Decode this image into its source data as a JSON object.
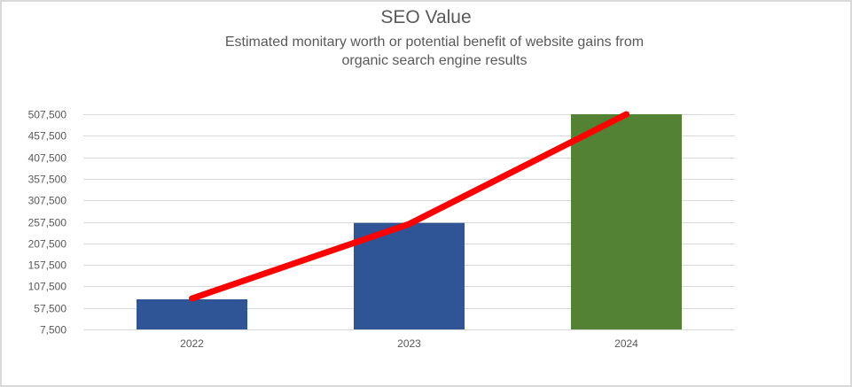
{
  "chart": {
    "title": "SEO Value",
    "subtitle": "Estimated monitary  worth  or potential  benefit of website gains from organic search engine results"
  },
  "chart_data": {
    "type": "bar",
    "title": "SEO Value",
    "subtitle": "Estimated monitary  worth  or potential  benefit of website gains from organic search engine results",
    "xlabel": "",
    "ylabel": "",
    "categories": [
      "2022",
      "2023",
      "2024"
    ],
    "series": [
      {
        "name": "SEO Value",
        "type": "bar",
        "values": [
          77500,
          255000,
          507500
        ],
        "colors": [
          "#2f5597",
          "#2f5597",
          "#548235"
        ]
      },
      {
        "name": "Trend",
        "type": "line",
        "values": [
          79500,
          252500,
          507500
        ],
        "color": "#ff0000"
      }
    ],
    "ylim": [
      7500,
      507500
    ],
    "yticks": [
      7500,
      57500,
      107500,
      157500,
      207500,
      257500,
      307500,
      357500,
      407500,
      457500,
      507500
    ],
    "ytick_labels": [
      "7,500",
      "57,500",
      "107,500",
      "157,500",
      "207,500",
      "257,500",
      "307,500",
      "357,500",
      "407,500",
      "457,500",
      "507,500"
    ],
    "grid": true,
    "legend": "none"
  }
}
